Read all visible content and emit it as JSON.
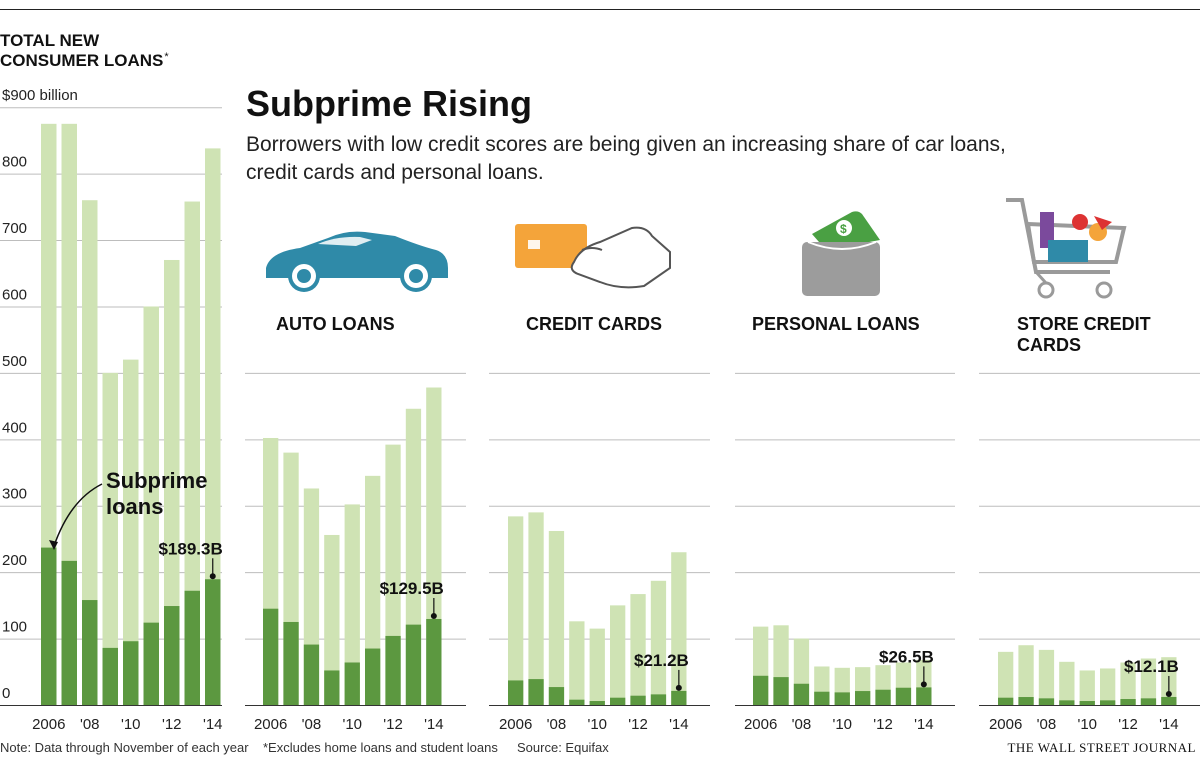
{
  "header": {
    "headline": "Subprime Rising",
    "subhead_line1": "Borrowers with low credit scores are being given an increasing share of car loans,",
    "subhead_line2": "credit cards and personal loans."
  },
  "axis_title_line1": "TOTAL NEW",
  "axis_title_line2": "CONSUMER LOANS",
  "axis_title_mark": "*",
  "annotation_line1": "Subprime",
  "annotation_line2": "loans",
  "footer": {
    "note": "Note: Data through November of each year",
    "excludes": "*Excludes home loans and student loans",
    "source": "Source: Equifax",
    "brand": "THE WALL STREET JOURNAL"
  },
  "icons": [
    "car-icon",
    "credit-card-icon",
    "wallet-icon",
    "shopping-cart-icon"
  ],
  "colors": {
    "total": "#cfe3b4",
    "subprime": "#5c9840",
    "car": "#2f8aa8",
    "card": "#f4a43a",
    "money": "#4aa043",
    "wallet": "#9c9c9c"
  },
  "chart_data": [
    {
      "type": "bar",
      "title_line1": "TOTAL NEW",
      "title_line2": "CONSUMER LOANS*",
      "x_ticks": [
        "2006",
        "'08",
        "'10",
        "'12",
        "'14"
      ],
      "ylim": [
        0,
        900
      ],
      "y_ticks": [
        "$900 billion",
        "800",
        "700",
        "600",
        "500",
        "400",
        "300",
        "200",
        "100",
        "0"
      ],
      "categories": [
        "2006",
        "2007",
        "2008",
        "2009",
        "2010",
        "2011",
        "2012",
        "2013",
        "2014"
      ],
      "series": [
        {
          "name": "",
          "values": [
            875,
            875,
            760,
            500,
            520,
            600,
            670,
            758,
            838
          ]
        },
        {
          "name": "Subprime loans",
          "values": [
            237,
            217,
            158,
            86,
            96,
            124,
            149,
            172,
            189.3
          ]
        }
      ],
      "callout": "$189.3B"
    },
    {
      "type": "bar",
      "title": "AUTO LOANS",
      "x_ticks": [
        "2006",
        "'08",
        "'10",
        "'12",
        "'14"
      ],
      "ylim": [
        0,
        900
      ],
      "categories": [
        "2006",
        "2007",
        "2008",
        "2009",
        "2010",
        "2011",
        "2012",
        "2013",
        "2014"
      ],
      "series": [
        {
          "name": "",
          "values": [
            402,
            380,
            326,
            256,
            302,
            345,
            392,
            446,
            478
          ]
        },
        {
          "name": "",
          "values": [
            145,
            125,
            91,
            52,
            64,
            85,
            104,
            121,
            129.5
          ]
        }
      ],
      "callout": "$129.5B"
    },
    {
      "type": "bar",
      "title": "CREDIT CARDS",
      "x_ticks": [
        "2006",
        "'08",
        "'10",
        "'12",
        "'14"
      ],
      "ylim": [
        0,
        900
      ],
      "categories": [
        "2006",
        "2007",
        "2008",
        "2009",
        "2010",
        "2011",
        "2012",
        "2013",
        "2014"
      ],
      "series": [
        {
          "name": "",
          "values": [
            284,
            290,
            262,
            126,
            115,
            150,
            167,
            187,
            230
          ]
        },
        {
          "name": "",
          "values": [
            37,
            39,
            27,
            8,
            6,
            11,
            14,
            16,
            21.2
          ]
        }
      ],
      "callout": "$21.2B"
    },
    {
      "type": "bar",
      "title": "PERSONAL LOANS",
      "x_ticks": [
        "2006",
        "'08",
        "'10",
        "'12",
        "'14"
      ],
      "ylim": [
        0,
        900
      ],
      "categories": [
        "2006",
        "2007",
        "2008",
        "2009",
        "2010",
        "2011",
        "2012",
        "2013",
        "2014"
      ],
      "series": [
        {
          "name": "",
          "values": [
            118,
            120,
            100,
            58,
            56,
            57,
            60,
            64,
            68
          ]
        },
        {
          "name": "",
          "values": [
            44,
            42,
            32,
            20,
            19,
            21,
            23,
            26,
            26.5
          ]
        }
      ],
      "callout": "$26.5B"
    },
    {
      "type": "bar",
      "title_line1": "STORE CREDIT",
      "title_line2": "CARDS",
      "x_ticks": [
        "2006",
        "'08",
        "'10",
        "'12",
        "'14"
      ],
      "ylim": [
        0,
        900
      ],
      "categories": [
        "2006",
        "2007",
        "2008",
        "2009",
        "2010",
        "2011",
        "2012",
        "2013",
        "2014"
      ],
      "series": [
        {
          "name": "",
          "values": [
            80,
            90,
            83,
            65,
            52,
            55,
            64,
            70,
            72
          ]
        },
        {
          "name": "",
          "values": [
            11,
            12,
            10,
            7,
            6,
            7,
            9,
            10,
            12.1
          ]
        }
      ],
      "callout": "$12.1B"
    }
  ]
}
